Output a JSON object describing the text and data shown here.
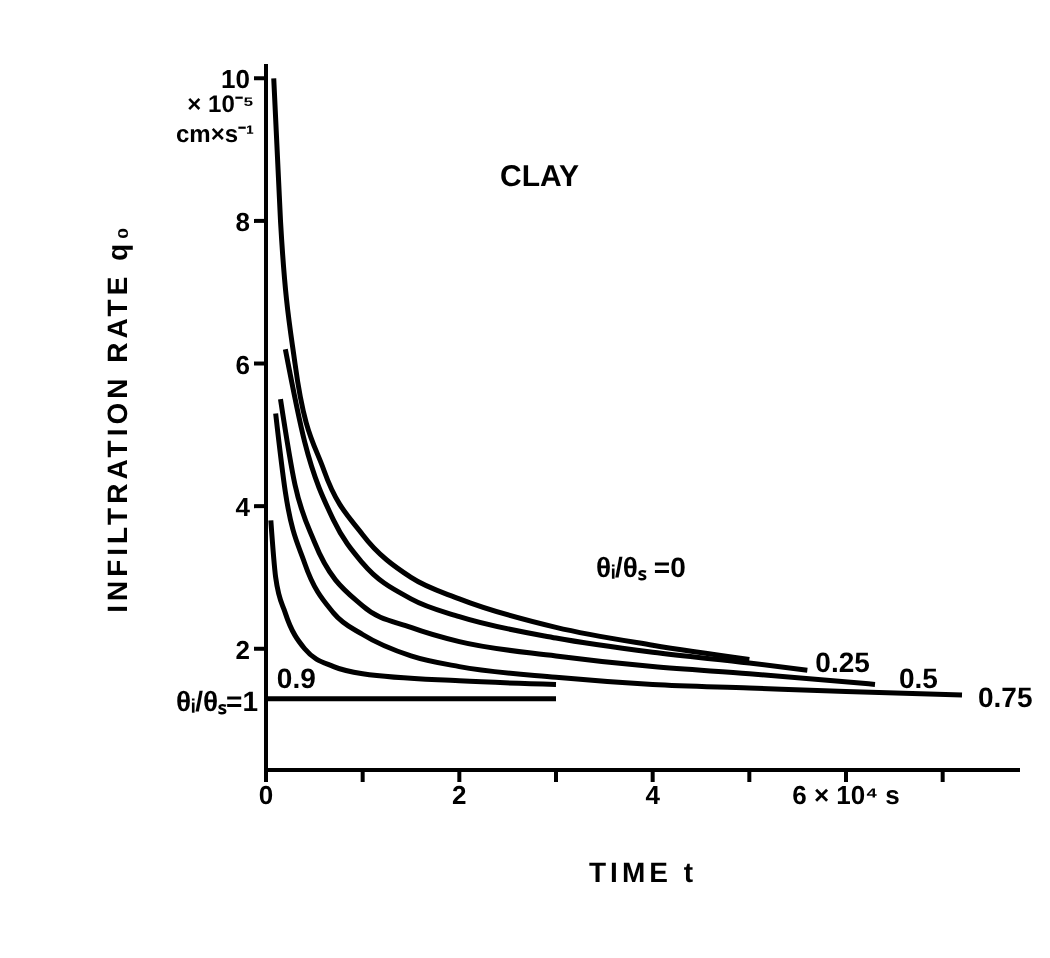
{
  "chart_data": {
    "type": "line",
    "title": "CLAY",
    "xlabel": "TIME t",
    "ylabel": "INFILTRATION RATE q₀",
    "annotations": [
      "× 10⁻⁵",
      "cm×s⁻¹"
    ],
    "xlim": [
      0,
      7.8
    ],
    "xticks": [
      0,
      {
        "value": 1,
        "label": null
      },
      2,
      {
        "value": 3,
        "label": null
      },
      4,
      {
        "value": 5,
        "label": null
      },
      {
        "value": 6,
        "label": "6 × 10⁴ s"
      },
      {
        "value": 7,
        "label": null
      }
    ],
    "ylim": [
      0.3,
      10.2
    ],
    "yticks": [
      2,
      4,
      6,
      8,
      10
    ],
    "grid": false,
    "marker": "none",
    "line_style": "solid",
    "series": [
      {
        "name": "θᵢ/θₛ =0",
        "color": "#000000",
        "x": [
          0.08,
          0.15,
          0.3,
          0.6,
          1,
          1.5,
          2,
          3,
          4,
          5
        ],
        "values": [
          10,
          8,
          6,
          4.5,
          3.6,
          3.0,
          2.7,
          2.3,
          2.05,
          1.85
        ]
      },
      {
        "name": "0.25",
        "color": "#000000",
        "x": [
          0.2,
          0.4,
          0.7,
          1,
          1.5,
          2,
          3,
          4,
          5,
          5.6
        ],
        "values": [
          6.2,
          4.9,
          3.8,
          3.2,
          2.7,
          2.45,
          2.15,
          1.95,
          1.8,
          1.7
        ]
      },
      {
        "name": "0.5",
        "color": "#000000",
        "x": [
          0.15,
          0.3,
          0.5,
          1,
          1.5,
          2,
          3,
          4,
          5,
          6.3
        ],
        "values": [
          5.5,
          4.3,
          3.5,
          2.6,
          2.3,
          2.1,
          1.9,
          1.75,
          1.65,
          1.5
        ]
      },
      {
        "name": "0.75",
        "color": "#000000",
        "x": [
          0.1,
          0.2,
          0.4,
          0.7,
          1,
          1.5,
          2,
          3,
          4,
          5,
          6,
          7.2
        ],
        "values": [
          5.3,
          4.2,
          3.2,
          2.5,
          2.2,
          1.9,
          1.75,
          1.6,
          1.5,
          1.45,
          1.4,
          1.35
        ]
      },
      {
        "name": "0.9",
        "color": "#000000",
        "x": [
          0.05,
          0.1,
          0.2,
          0.4,
          0.7,
          1,
          2,
          3
        ],
        "values": [
          3.8,
          3.0,
          2.5,
          2.0,
          1.75,
          1.65,
          1.55,
          1.5
        ]
      },
      {
        "name": "θᵢ/θₛ=1",
        "color": "#000000",
        "x": [
          0,
          3
        ],
        "values": [
          1.3,
          1.3
        ]
      }
    ]
  }
}
